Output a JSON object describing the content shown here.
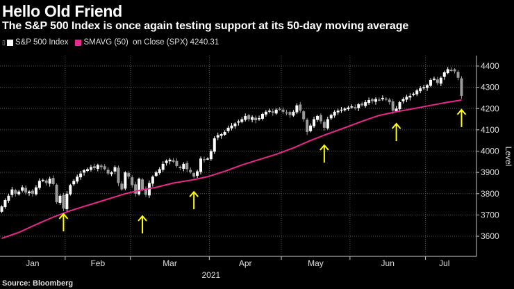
{
  "header": {
    "title": "Hello Old Friend",
    "subtitle": "The S&P 500 Index is once again testing support at its 50-day moving average"
  },
  "legend": {
    "series1": "S&P 500 Index",
    "series2": "SMAVG (50)  on Close (SPX) 4240.31"
  },
  "source": "Source: Bloomberg",
  "colors": {
    "background": "#000000",
    "up_candle": "#ffffff",
    "down_candle": "#9a9a9a",
    "sma": "#e8288a",
    "arrow": "#ffff00",
    "grid": "#555555"
  },
  "chart_data": {
    "type": "candlestick",
    "title": "Hello Old Friend",
    "ylabel": "Level",
    "ylim": [
      3550,
      4450
    ],
    "yticks": [
      3600,
      3700,
      3800,
      3900,
      4000,
      4100,
      4200,
      4300,
      4400
    ],
    "xlabel_year": "2021",
    "months": [
      {
        "label": "Jan",
        "start_day": 0
      },
      {
        "label": "Feb",
        "start_day": 19
      },
      {
        "label": "Mar",
        "start_day": 38
      },
      {
        "label": "Apr",
        "start_day": 61
      },
      {
        "label": "May",
        "start_day": 82
      },
      {
        "label": "Jun",
        "start_day": 102
      },
      {
        "label": "Jul",
        "start_day": 124
      }
    ],
    "grid": true,
    "legend_position": "top-left",
    "series": [
      {
        "name": "S&P 500 Index",
        "close": [
          3740,
          3770,
          3790,
          3820,
          3800,
          3810,
          3830,
          3805,
          3810,
          3800,
          3830,
          3860,
          3865,
          3850,
          3870,
          3845,
          3760,
          3790,
          3730,
          3800,
          3840,
          3860,
          3880,
          3895,
          3910,
          3915,
          3925,
          3920,
          3935,
          3925,
          3915,
          3895,
          3900,
          3925,
          3850,
          3820,
          3900,
          3880,
          3840,
          3800,
          3870,
          3820,
          3795,
          3850,
          3880,
          3900,
          3915,
          3940,
          3955,
          3960,
          3950,
          3930,
          3920,
          3940,
          3915,
          3900,
          3880,
          3905,
          3965,
          3960,
          3965,
          4000,
          4060,
          4075,
          4080,
          4090,
          4110,
          4120,
          4130,
          4140,
          4150,
          4165,
          4150,
          4160,
          4145,
          4155,
          4175,
          4185,
          4190,
          4180,
          4195,
          4198,
          4185,
          4180,
          4170,
          4185,
          4215,
          4190,
          4150,
          4090,
          4120,
          4150,
          4165,
          4140,
          4110,
          4150,
          4170,
          4185,
          4190,
          4195,
          4200,
          4205,
          4210,
          4205,
          4220,
          4215,
          4230,
          4240,
          4235,
          4245,
          4240,
          4250,
          4245,
          4230,
          4190,
          4200,
          4230,
          4245,
          4255,
          4260,
          4270,
          4285,
          4295,
          4300,
          4310,
          4335,
          4340,
          4320,
          4345,
          4370,
          4385,
          4380,
          4375,
          4345,
          4260
        ]
      },
      {
        "name": "SMAVG (50)  on Close (SPX)",
        "last": 4240.31,
        "points": [
          [
            0,
            3590
          ],
          [
            5,
            3618
          ],
          [
            10,
            3655
          ],
          [
            15,
            3690
          ],
          [
            20,
            3720
          ],
          [
            25,
            3745
          ],
          [
            30,
            3770
          ],
          [
            36,
            3800
          ],
          [
            40,
            3815
          ],
          [
            45,
            3830
          ],
          [
            50,
            3850
          ],
          [
            56,
            3866
          ],
          [
            60,
            3880
          ],
          [
            65,
            3905
          ],
          [
            70,
            3935
          ],
          [
            76,
            3965
          ],
          [
            80,
            3985
          ],
          [
            85,
            4015
          ],
          [
            90,
            4050
          ],
          [
            94,
            4075
          ],
          [
            100,
            4110
          ],
          [
            105,
            4140
          ],
          [
            110,
            4168
          ],
          [
            115,
            4185
          ],
          [
            120,
            4200
          ],
          [
            125,
            4215
          ],
          [
            130,
            4230
          ],
          [
            134,
            4240
          ]
        ]
      }
    ],
    "annotations": [
      {
        "type": "arrow",
        "day": 18,
        "price": 3708
      },
      {
        "type": "arrow",
        "day": 41,
        "price": 3698
      },
      {
        "type": "arrow",
        "day": 56,
        "price": 3812
      },
      {
        "type": "arrow",
        "day": 94,
        "price": 4031
      },
      {
        "type": "arrow",
        "day": 115,
        "price": 4132
      },
      {
        "type": "arrow",
        "day": 134,
        "price": 4198
      }
    ]
  }
}
